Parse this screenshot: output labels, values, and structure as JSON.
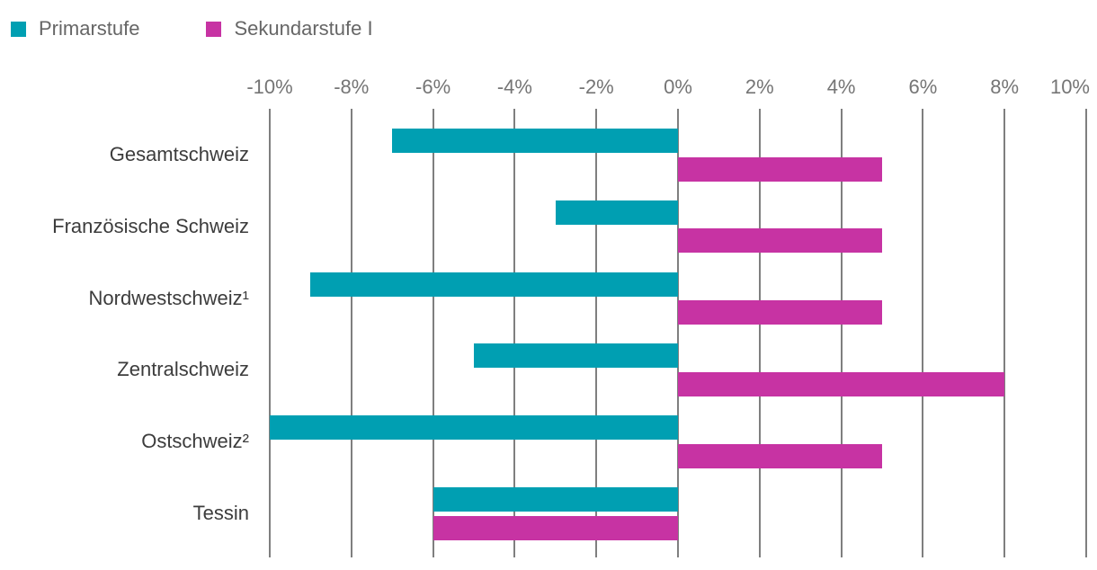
{
  "legend": {
    "position": "top-left"
  },
  "chart_data": {
    "type": "bar",
    "orientation": "horizontal",
    "categories": [
      "Gesamtschweiz",
      "Französische Schweiz",
      "Nordwestschweiz¹",
      "Zentralschweiz",
      "Ostschweiz²",
      "Tessin"
    ],
    "series": [
      {
        "name": "Primarstufe",
        "color": "#009FB2",
        "values": [
          -7,
          -3,
          -9,
          -5,
          -10,
          -6
        ]
      },
      {
        "name": "Sekundarstufe I",
        "color": "#C733A3",
        "values": [
          5,
          5,
          5,
          8,
          5,
          -6
        ]
      }
    ],
    "unit": "%",
    "xlim": [
      -10,
      10
    ],
    "x_ticks": [
      -10,
      -8,
      -6,
      -4,
      -2,
      0,
      2,
      4,
      6,
      8,
      10
    ],
    "x_tick_labels": [
      "-10%",
      "-8%",
      "-6%",
      "-4%",
      "-2%",
      "0%",
      "2%",
      "4%",
      "6%",
      "8%",
      "10%"
    ],
    "grid": true,
    "legend_position": "top-left"
  },
  "colors": {
    "background": "#FFFFFF",
    "gridline": "#7F7F7F",
    "tick_label": "#757575",
    "category_label": "#3C3C3C",
    "legend_label": "#666666"
  }
}
